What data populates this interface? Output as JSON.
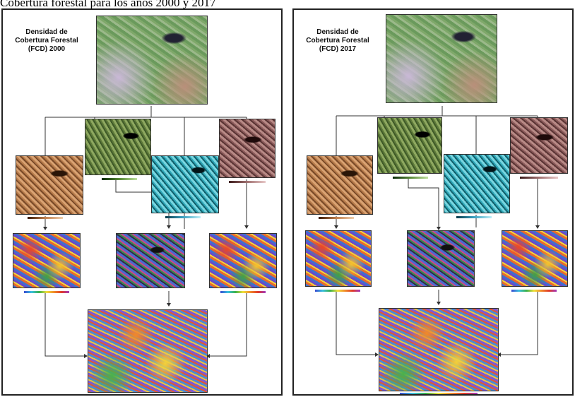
{
  "caption": "Cobertura forestal para los años 2000 y 2017",
  "panels": [
    {
      "title": "Densidad de Cobertura Forestal (FCD) 2000"
    },
    {
      "title": "Densidad de Cobertura Forestal (FCD) 2017"
    }
  ]
}
